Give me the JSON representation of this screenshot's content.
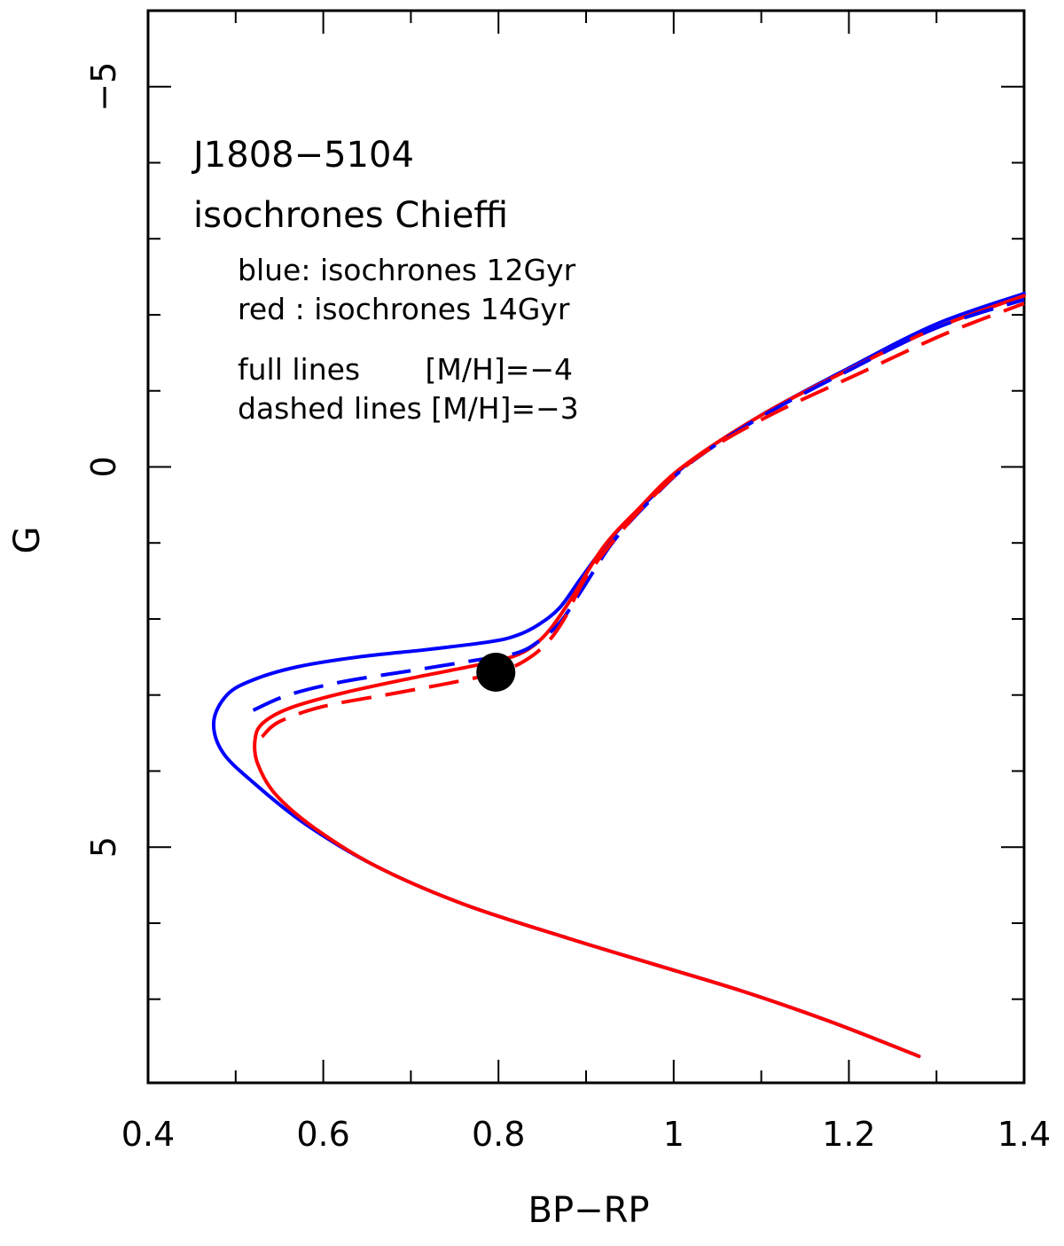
{
  "chart_data": {
    "type": "line",
    "title": "",
    "xlabel": "BP−RP",
    "ylabel": "G",
    "xlim": [
      0.4,
      1.4
    ],
    "ylim": [
      8.1,
      -6.0
    ],
    "y_inverted": true,
    "grid": false,
    "x_major_ticks": [
      0.4,
      0.6,
      0.8,
      1.0,
      1.2,
      1.4
    ],
    "x_tick_labels": [
      "0.4",
      "0.6",
      "0.8",
      "1",
      "1.2",
      "1.4"
    ],
    "x_minor_ticks": [
      0.5,
      0.7,
      0.9,
      1.1,
      1.3
    ],
    "y_major_ticks": [
      -5,
      0,
      5
    ],
    "y_tick_labels": [
      "−5",
      "0",
      "5"
    ],
    "y_minor_ticks": [
      -4,
      -3,
      -2,
      -1,
      1,
      2,
      3,
      4,
      6,
      7
    ],
    "annotations": {
      "star_name": "J1808−5104",
      "model_name": "isochrones Chieffi",
      "blue_line": "blue: isochrones 12Gyr",
      "red_line": "red : isochrones 14Gyr",
      "full_lines": "full lines       [M/H]=−4",
      "dashed_lines": "dashed lines [M/H]=−3"
    },
    "colors": {
      "blue": "#0000ff",
      "red": "#ff0000",
      "star": "#000000"
    },
    "series": [
      {
        "name": "12Gyr [M/H]=-4",
        "color": "blue",
        "style": "solid",
        "x": [
          1.28,
          1.18,
          1.08,
          0.98,
          0.88,
          0.76,
          0.66,
          0.58,
          0.52,
          0.485,
          0.475,
          0.49,
          0.52,
          0.57,
          0.64,
          0.72,
          0.79,
          0.82,
          0.845,
          0.87,
          0.895,
          0.93,
          0.97,
          1.02,
          1.1,
          1.2,
          1.3,
          1.4
        ],
        "y": [
          7.75,
          7.3,
          6.9,
          6.55,
          6.2,
          5.75,
          5.25,
          4.7,
          4.15,
          3.75,
          3.35,
          3.0,
          2.8,
          2.63,
          2.5,
          2.4,
          2.3,
          2.22,
          2.08,
          1.85,
          1.45,
          0.92,
          0.45,
          -0.08,
          -0.68,
          -1.3,
          -1.88,
          -2.28
        ]
      },
      {
        "name": "14Gyr [M/H]=-4",
        "color": "red",
        "style": "solid",
        "x": [
          1.28,
          1.18,
          1.08,
          0.98,
          0.88,
          0.76,
          0.66,
          0.59,
          0.545,
          0.525,
          0.522,
          0.53,
          0.56,
          0.62,
          0.7,
          0.77,
          0.815,
          0.84,
          0.86,
          0.885,
          0.92,
          0.96,
          1.01,
          1.1,
          1.2,
          1.3,
          1.4
        ],
        "y": [
          7.75,
          7.3,
          6.9,
          6.55,
          6.2,
          5.75,
          5.25,
          4.75,
          4.3,
          3.9,
          3.6,
          3.38,
          3.18,
          2.98,
          2.78,
          2.62,
          2.5,
          2.35,
          2.12,
          1.7,
          1.05,
          0.55,
          0.0,
          -0.68,
          -1.28,
          -1.83,
          -2.25
        ]
      },
      {
        "name": "12Gyr [M/H]=-3",
        "color": "blue",
        "style": "dashed",
        "x": [
          0.52,
          0.56,
          0.62,
          0.7,
          0.77,
          0.82,
          0.845,
          0.87,
          0.895,
          0.93,
          0.97,
          1.02,
          1.1,
          1.2,
          1.3,
          1.4
        ],
        "y": [
          3.2,
          3.0,
          2.83,
          2.68,
          2.55,
          2.45,
          2.3,
          2.05,
          1.62,
          1.0,
          0.48,
          -0.06,
          -0.66,
          -1.27,
          -1.83,
          -2.2
        ]
      },
      {
        "name": "14Gyr [M/H]=-3",
        "color": "red",
        "style": "dashed",
        "x": [
          0.53,
          0.55,
          0.6,
          0.68,
          0.75,
          0.8,
          0.83,
          0.855,
          0.875,
          0.9,
          0.94,
          0.98,
          1.03,
          1.11,
          1.21,
          1.31,
          1.4
        ],
        "y": [
          3.55,
          3.35,
          3.15,
          2.98,
          2.83,
          2.7,
          2.55,
          2.32,
          2.0,
          1.45,
          0.85,
          0.35,
          -0.15,
          -0.68,
          -1.22,
          -1.75,
          -2.15
        ]
      }
    ],
    "star": {
      "name": "J1808−5104",
      "x": 0.797,
      "y": 2.7
    }
  }
}
